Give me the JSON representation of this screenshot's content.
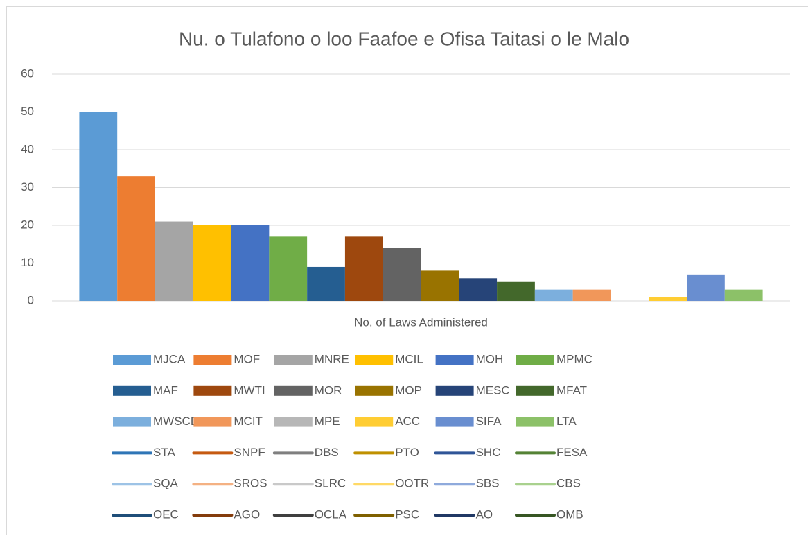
{
  "chart_data": {
    "type": "bar",
    "title": "Nu. o Tulafono o loo Faafoe e Ofisa Taitasi o le Malo",
    "categories": [
      "No. of Laws Administered"
    ],
    "ylim": [
      0,
      60
    ],
    "yticks": [
      0,
      10,
      20,
      30,
      40,
      50,
      60
    ],
    "grid": true,
    "legend": "bottom",
    "series": [
      {
        "name": "MJCA",
        "color": "#5b9bd5",
        "values": [
          50
        ]
      },
      {
        "name": "MOF",
        "color": "#ed7d31",
        "values": [
          33
        ]
      },
      {
        "name": "MNRE",
        "color": "#a5a5a5",
        "values": [
          21
        ]
      },
      {
        "name": "MCIL",
        "color": "#ffc000",
        "values": [
          20
        ]
      },
      {
        "name": "MOH",
        "color": "#4472c4",
        "values": [
          20
        ]
      },
      {
        "name": "MPMC",
        "color": "#70ad47",
        "values": [
          17
        ]
      },
      {
        "name": "MAF",
        "color": "#255e91",
        "values": [
          9
        ]
      },
      {
        "name": "MWTI",
        "color": "#9e480e",
        "values": [
          17
        ]
      },
      {
        "name": "MOR",
        "color": "#636363",
        "values": [
          14
        ]
      },
      {
        "name": "MOP",
        "color": "#997300",
        "values": [
          8
        ]
      },
      {
        "name": "MESC",
        "color": "#264478",
        "values": [
          6
        ]
      },
      {
        "name": "MFAT",
        "color": "#43682b",
        "values": [
          5
        ]
      },
      {
        "name": "MWSCD",
        "color": "#7cafdd",
        "values": [
          3
        ]
      },
      {
        "name": "MCIT",
        "color": "#f1975a",
        "values": [
          3
        ]
      },
      {
        "name": "MPE",
        "color": "#b7b7b7",
        "values": [
          0
        ]
      },
      {
        "name": "ACC",
        "color": "#ffcd33",
        "values": [
          1
        ]
      },
      {
        "name": "SIFA",
        "color": "#698ed0",
        "values": [
          7
        ]
      },
      {
        "name": "LTA",
        "color": "#8cc168",
        "values": [
          3
        ]
      },
      {
        "name": "STA",
        "color": "#2e75b6",
        "type": "line",
        "values": [
          null
        ]
      },
      {
        "name": "SNPF",
        "color": "#c55a11",
        "type": "line",
        "values": [
          null
        ]
      },
      {
        "name": "DBS",
        "color": "#7f7f7f",
        "type": "line",
        "values": [
          null
        ]
      },
      {
        "name": "PTO",
        "color": "#bf9000",
        "type": "line",
        "values": [
          null
        ]
      },
      {
        "name": "SHC",
        "color": "#2f5597",
        "type": "line",
        "values": [
          null
        ]
      },
      {
        "name": "FESA",
        "color": "#548235",
        "type": "line",
        "values": [
          null
        ]
      },
      {
        "name": "SQA",
        "color": "#9dc3e6",
        "type": "line",
        "values": [
          null
        ]
      },
      {
        "name": "SROS",
        "color": "#f4b183",
        "type": "line",
        "values": [
          null
        ]
      },
      {
        "name": "SLRC",
        "color": "#c9c9c9",
        "type": "line",
        "values": [
          null
        ]
      },
      {
        "name": "OOTR",
        "color": "#ffd966",
        "type": "line",
        "values": [
          null
        ]
      },
      {
        "name": "SBS",
        "color": "#8faadc",
        "type": "line",
        "values": [
          null
        ]
      },
      {
        "name": "CBS",
        "color": "#a9d18e",
        "type": "line",
        "values": [
          null
        ]
      },
      {
        "name": "OEC",
        "color": "#1f4e79",
        "type": "line",
        "values": [
          null
        ]
      },
      {
        "name": "AGO",
        "color": "#843c0c",
        "type": "line",
        "values": [
          null
        ]
      },
      {
        "name": "OCLA",
        "color": "#3f3f3f",
        "type": "line",
        "values": [
          null
        ]
      },
      {
        "name": "PSC",
        "color": "#7f6000",
        "type": "line",
        "values": [
          null
        ]
      },
      {
        "name": "AO",
        "color": "#203864",
        "type": "line",
        "values": [
          null
        ]
      },
      {
        "name": "OMB",
        "color": "#375623",
        "type": "line",
        "values": [
          null
        ]
      }
    ]
  }
}
